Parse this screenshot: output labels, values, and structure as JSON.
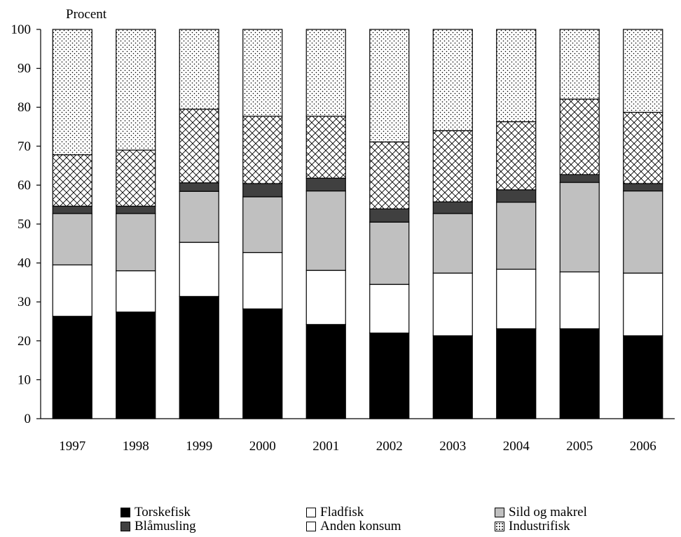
{
  "chart_data": {
    "type": "bar",
    "stacked": true,
    "title": "",
    "ylabel": "Procent",
    "xlabel": "",
    "ylim": [
      0,
      100
    ],
    "yticks": [
      0,
      10,
      20,
      30,
      40,
      50,
      60,
      70,
      80,
      90,
      100
    ],
    "grid": false,
    "legend_position": "bottom",
    "categories": [
      "1997",
      "1998",
      "1999",
      "2000",
      "2001",
      "2002",
      "2003",
      "2004",
      "2005",
      "2006"
    ],
    "series": [
      {
        "name": "Torskefisk",
        "pattern": "solid-black",
        "values": [
          26.3,
          27.4,
          31.4,
          28.2,
          24.2,
          22.0,
          21.3,
          23.1,
          23.1,
          21.3
        ]
      },
      {
        "name": "Fladfisk",
        "pattern": "white",
        "values": [
          13.2,
          10.6,
          13.9,
          14.5,
          13.9,
          12.5,
          16.1,
          15.3,
          14.6,
          16.1
        ]
      },
      {
        "name": "Sild og makrel",
        "pattern": "light-gray",
        "values": [
          13.2,
          14.7,
          13.1,
          14.3,
          20.4,
          16.0,
          15.3,
          17.2,
          23.0,
          21.1
        ]
      },
      {
        "name": "Blåmusling",
        "pattern": "dark-gray",
        "values": [
          1.9,
          1.9,
          2.2,
          3.4,
          3.3,
          3.4,
          3.0,
          3.2,
          2.0,
          1.9
        ]
      },
      {
        "name": "Anden konsum",
        "pattern": "crosshatch",
        "values": [
          13.2,
          14.4,
          18.9,
          17.3,
          15.9,
          17.2,
          18.3,
          17.5,
          19.4,
          18.3
        ]
      },
      {
        "name": "Industrifisk",
        "pattern": "dotted",
        "values": [
          32.2,
          31.0,
          20.5,
          22.3,
          22.3,
          28.9,
          26.0,
          23.7,
          17.9,
          21.3
        ]
      }
    ],
    "colors": {
      "solid": "#000000",
      "white": "#ffffff",
      "light_gray": "#c0c0c0",
      "dark_gray": "#404040"
    }
  }
}
